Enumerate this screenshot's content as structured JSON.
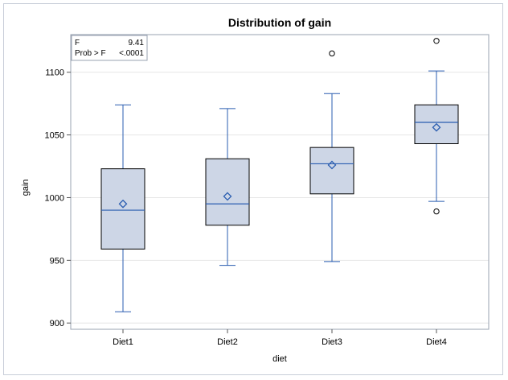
{
  "chart_data": {
    "type": "box",
    "title": "Distribution of gain",
    "xlabel": "diet",
    "ylabel": "gain",
    "ylim": [
      895,
      1130
    ],
    "yticks": [
      900,
      950,
      1000,
      1050,
      1100
    ],
    "grid": true,
    "colors": {
      "box_fill": "#cdd6e6",
      "whisker": "#2a5db0",
      "box_edge": "#000000",
      "grid": "#e6e6e6"
    },
    "stats_table": {
      "rows": [
        {
          "label": "F",
          "value": "9.41"
        },
        {
          "label": "Prob > F",
          "value": "<.0001"
        }
      ]
    },
    "groups": [
      {
        "name": "Diet1",
        "min": 909,
        "q1": 959,
        "median": 990,
        "mean": 995,
        "q3": 1023,
        "max": 1074,
        "outliers": []
      },
      {
        "name": "Diet2",
        "min": 946,
        "q1": 978,
        "median": 995,
        "mean": 1001,
        "q3": 1031,
        "max": 1071,
        "outliers": []
      },
      {
        "name": "Diet3",
        "min": 949,
        "q1": 1003,
        "median": 1027,
        "mean": 1026,
        "q3": 1040,
        "max": 1083,
        "outliers": [
          1115
        ]
      },
      {
        "name": "Diet4",
        "min": 997,
        "q1": 1043,
        "median": 1060,
        "mean": 1056,
        "q3": 1074,
        "max": 1101,
        "outliers": [
          989,
          1125
        ]
      }
    ]
  }
}
